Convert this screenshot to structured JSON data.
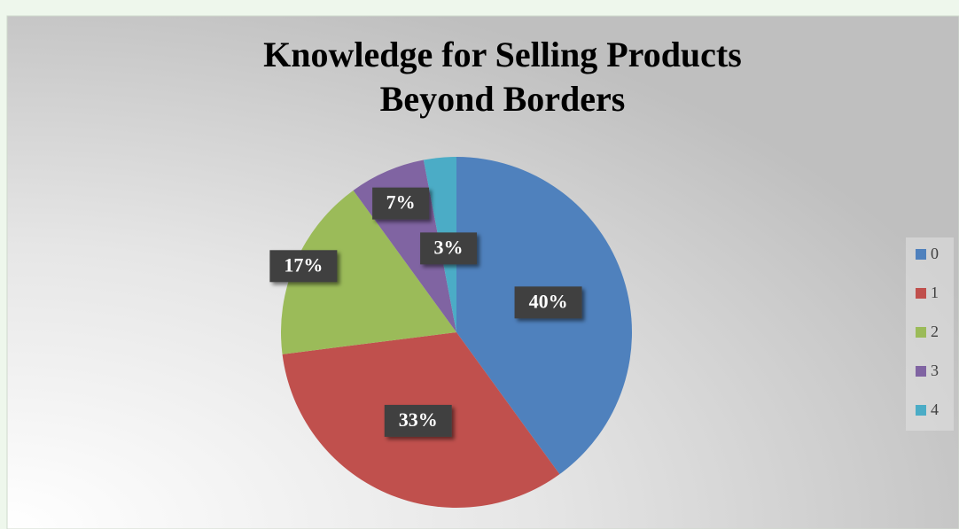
{
  "chart_data": {
    "type": "pie",
    "title": "Knowledge for Selling Products Beyond Borders",
    "categories": [
      "0",
      "1",
      "2",
      "3",
      "4"
    ],
    "values": [
      40,
      33,
      17,
      7,
      3
    ],
    "value_labels": [
      "40%",
      "33%",
      "17%",
      "7%",
      "3%"
    ],
    "colors": [
      "#4f81bd",
      "#c0504d",
      "#9bbb59",
      "#8064a2",
      "#4bacc6"
    ],
    "legend": "right"
  }
}
